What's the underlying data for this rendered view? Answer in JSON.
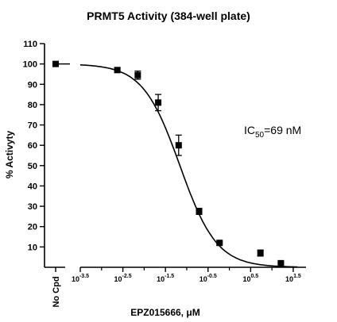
{
  "chart_data": {
    "type": "scatter",
    "title": "PRMT5 Activity (384-well plate)",
    "xlabel": "EPZ015666, μM",
    "ylabel": "% Activyty",
    "x_scale": "log10",
    "xlim": [
      -3.5,
      1.8
    ],
    "ylim": [
      0,
      110
    ],
    "y_ticks": [
      10,
      20,
      30,
      40,
      50,
      60,
      70,
      80,
      90,
      100,
      110
    ],
    "x_ticks": [
      {
        "value": -3.5,
        "base": "10",
        "exp": "-3.5"
      },
      {
        "value": -2.5,
        "base": "10",
        "exp": "-2.5"
      },
      {
        "value": -1.5,
        "base": "10",
        "exp": "-1.5"
      },
      {
        "value": -0.5,
        "base": "10",
        "exp": "-0.5"
      },
      {
        "value": 0.5,
        "base": "10",
        "exp": "0.5"
      },
      {
        "value": 1.5,
        "base": "10",
        "exp": "1.5"
      }
    ],
    "no_cpd_label": "No Cpd",
    "no_cpd_value": 100,
    "points": [
      {
        "x": -2.63,
        "y": 97,
        "err": 1
      },
      {
        "x": -2.15,
        "y": 94.5,
        "err": 2
      },
      {
        "x": -1.67,
        "y": 81,
        "err": 4
      },
      {
        "x": -1.19,
        "y": 60,
        "err": 5
      },
      {
        "x": -0.71,
        "y": 27.5,
        "err": 1.5
      },
      {
        "x": -0.23,
        "y": 12,
        "err": 0.5
      },
      {
        "x": 0.73,
        "y": 7,
        "err": 1.5
      },
      {
        "x": 1.21,
        "y": 2,
        "err": 0.5
      }
    ],
    "fit": {
      "top": 100,
      "bottom": 0,
      "log_ic50": -1.161,
      "hill": 1
    },
    "annotation": {
      "prefix": "IC",
      "sub": "50",
      "suffix": "=69 nM"
    },
    "grid": false,
    "colors": {
      "marker": "#000000",
      "curve": "#000000",
      "axis": "#000000"
    }
  }
}
